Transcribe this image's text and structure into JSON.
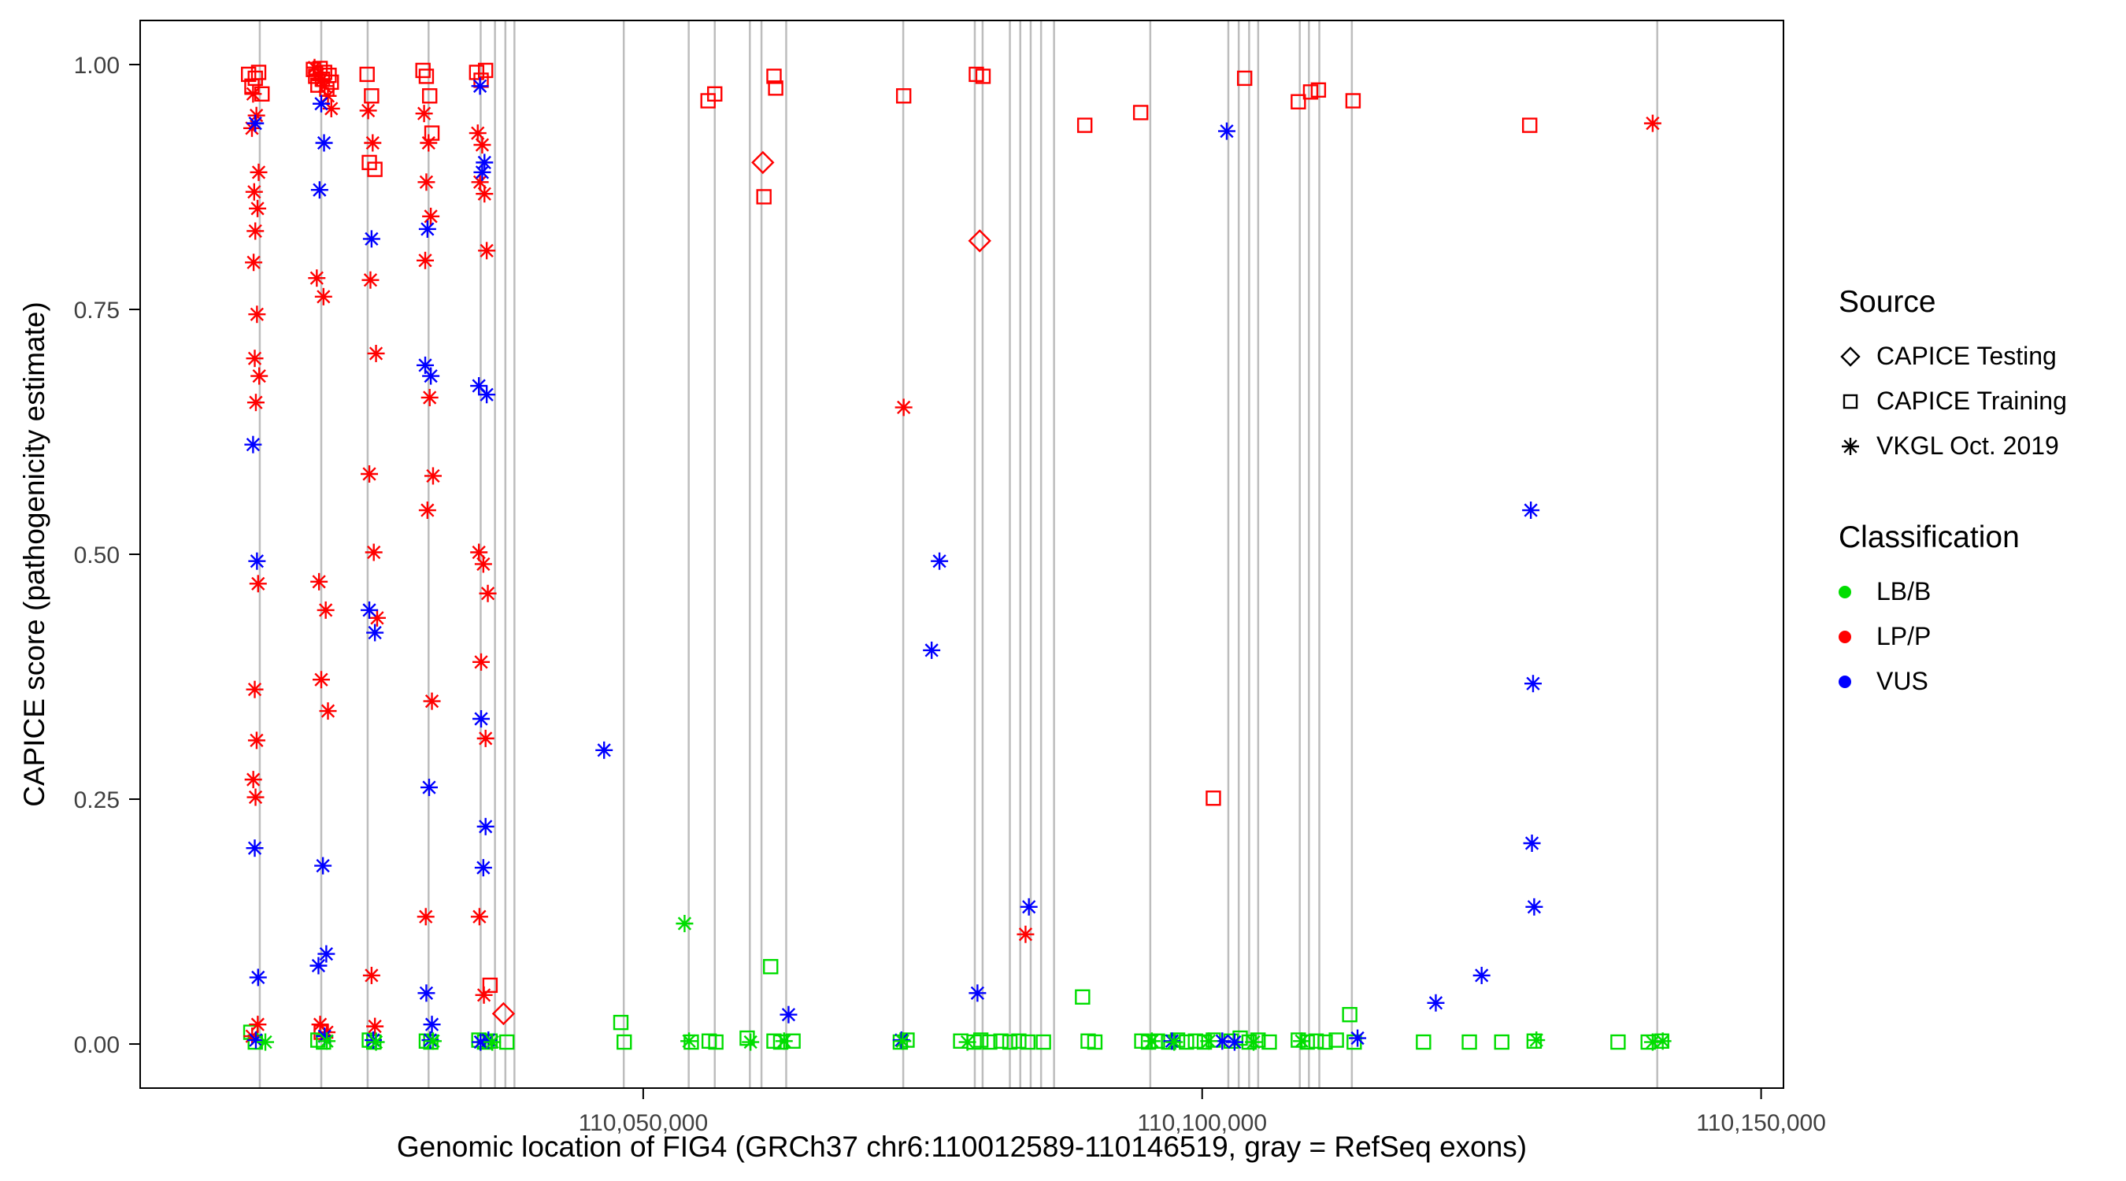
{
  "chart_data": {
    "type": "scatter",
    "title": "",
    "xlabel": "Genomic location of FIG4 (GRCh37 chr6:110012589-110146519, gray = RefSeq exons)",
    "ylabel": "CAPICE score (pathogenicity estimate)",
    "xlim": [
      110005000,
      110152000
    ],
    "ylim": [
      -0.045,
      1.045
    ],
    "grid": "off",
    "x_ticks": [
      {
        "value": 110050000,
        "label": "110,050,000"
      },
      {
        "value": 110100000,
        "label": "110,100,000"
      },
      {
        "value": 110150000,
        "label": "110,150,000"
      }
    ],
    "y_ticks": [
      {
        "value": 0.0,
        "label": "0.00"
      },
      {
        "value": 0.25,
        "label": "0.25"
      },
      {
        "value": 0.5,
        "label": "0.50"
      },
      {
        "value": 0.75,
        "label": "0.75"
      },
      {
        "value": 1.0,
        "label": "1.00"
      }
    ],
    "colors": {
      "LB/B": "#00dd00",
      "LP/P": "#ff0000",
      "VUS": "#0000ff",
      "exon": "#bdbdbd"
    },
    "exon_lines": [
      110015700,
      110021200,
      110025350,
      110030800,
      110035460,
      110036740,
      110037670,
      110038480,
      110048260,
      110054070,
      110056400,
      110059540,
      110060580,
      110062790,
      110073260,
      110079660,
      110080360,
      110082800,
      110083730,
      110084660,
      110085590,
      110086750,
      110095360,
      110102340,
      110103270,
      110104200,
      110105010,
      110108730,
      110109550,
      110110480,
      110113390,
      110140710
    ],
    "legend": {
      "source": {
        "title": "Source",
        "items": [
          {
            "label": "CAPICE Testing",
            "marker": "diamond"
          },
          {
            "label": "CAPICE Training",
            "marker": "square"
          },
          {
            "label": "VKGL Oct. 2019",
            "marker": "asterisk"
          }
        ]
      },
      "classification": {
        "title": "Classification",
        "items": [
          {
            "label": "LB/B",
            "color_key": "LB/B"
          },
          {
            "label": "LP/P",
            "color_key": "LP/P"
          },
          {
            "label": "VUS",
            "color_key": "VUS"
          }
        ]
      }
    },
    "series": [
      {
        "name": "CAPICE Testing",
        "classification": "LP/P",
        "marker": "diamond",
        "points": [
          [
            110037500,
            0.031
          ],
          [
            110060700,
            0.9
          ],
          [
            110080100,
            0.82
          ]
        ]
      },
      {
        "name": "CAPICE Training",
        "classification": "LP/P",
        "marker": "square",
        "points": [
          [
            110014700,
            0.99
          ],
          [
            110015000,
            0.978
          ],
          [
            110015300,
            0.986
          ],
          [
            110015600,
            0.992
          ],
          [
            110015900,
            0.97
          ],
          [
            110020500,
            0.995
          ],
          [
            110020700,
            0.988
          ],
          [
            110020900,
            0.979
          ],
          [
            110021100,
            0.996
          ],
          [
            110021300,
            0.985
          ],
          [
            110021500,
            0.992
          ],
          [
            110021700,
            0.975
          ],
          [
            110021900,
            0.989
          ],
          [
            110022100,
            0.982
          ],
          [
            110021200,
            0.012
          ],
          [
            110025300,
            0.99
          ],
          [
            110025700,
            0.968
          ],
          [
            110025500,
            0.9
          ],
          [
            110026000,
            0.893
          ],
          [
            110030300,
            0.994
          ],
          [
            110030600,
            0.988
          ],
          [
            110030900,
            0.968
          ],
          [
            110031100,
            0.93
          ],
          [
            110035100,
            0.992
          ],
          [
            110035500,
            0.984
          ],
          [
            110035900,
            0.994
          ],
          [
            110036300,
            0.06
          ],
          [
            110055800,
            0.963
          ],
          [
            110056400,
            0.97
          ],
          [
            110060800,
            0.865
          ],
          [
            110061700,
            0.988
          ],
          [
            110061850,
            0.976
          ],
          [
            110073300,
            0.968
          ],
          [
            110079800,
            0.99
          ],
          [
            110080400,
            0.988
          ],
          [
            110089500,
            0.938
          ],
          [
            110094500,
            0.951
          ],
          [
            110101000,
            0.251
          ],
          [
            110103800,
            0.986
          ],
          [
            110108600,
            0.962
          ],
          [
            110109700,
            0.972
          ],
          [
            110110400,
            0.974
          ],
          [
            110113500,
            0.963
          ],
          [
            110129300,
            0.938
          ]
        ]
      },
      {
        "name": "CAPICE Training",
        "classification": "LB/B",
        "marker": "square",
        "points": [
          [
            110014900,
            0.012
          ],
          [
            110015300,
            0.002
          ],
          [
            110020900,
            0.004
          ],
          [
            110021400,
            0.002
          ],
          [
            110025500,
            0.004
          ],
          [
            110025900,
            0.002
          ],
          [
            110030600,
            0.003
          ],
          [
            110031000,
            0.002
          ],
          [
            110035300,
            0.004
          ],
          [
            110035800,
            0.002
          ],
          [
            110036300,
            0.003
          ],
          [
            110037800,
            0.002
          ],
          [
            110048000,
            0.022
          ],
          [
            110048300,
            0.002
          ],
          [
            110054300,
            0.002
          ],
          [
            110055900,
            0.003
          ],
          [
            110056500,
            0.002
          ],
          [
            110059300,
            0.006
          ],
          [
            110061400,
            0.079
          ],
          [
            110061700,
            0.003
          ],
          [
            110062300,
            0.002
          ],
          [
            110063400,
            0.003
          ],
          [
            110073000,
            0.002
          ],
          [
            110073600,
            0.004
          ],
          [
            110078400,
            0.003
          ],
          [
            110079600,
            0.002
          ],
          [
            110080200,
            0.004
          ],
          [
            110081000,
            0.002
          ],
          [
            110082000,
            0.003
          ],
          [
            110082800,
            0.002
          ],
          [
            110083600,
            0.003
          ],
          [
            110084400,
            0.002
          ],
          [
            110085800,
            0.002
          ],
          [
            110089300,
            0.048
          ],
          [
            110089800,
            0.003
          ],
          [
            110090400,
            0.002
          ],
          [
            110094600,
            0.003
          ],
          [
            110095200,
            0.002
          ],
          [
            110096000,
            0.003
          ],
          [
            110097000,
            0.002
          ],
          [
            110097800,
            0.004
          ],
          [
            110098600,
            0.002
          ],
          [
            110099400,
            0.003
          ],
          [
            110100200,
            0.002
          ],
          [
            110101000,
            0.004
          ],
          [
            110102600,
            0.003
          ],
          [
            110103400,
            0.006
          ],
          [
            110104200,
            0.002
          ],
          [
            110105000,
            0.004
          ],
          [
            110106000,
            0.002
          ],
          [
            110108600,
            0.004
          ],
          [
            110109400,
            0.002
          ],
          [
            110110200,
            0.003
          ],
          [
            110111000,
            0.002
          ],
          [
            110112000,
            0.004
          ],
          [
            110113200,
            0.03
          ],
          [
            110113600,
            0.002
          ],
          [
            110119800,
            0.002
          ],
          [
            110123900,
            0.002
          ],
          [
            110126800,
            0.002
          ],
          [
            110129700,
            0.003
          ],
          [
            110137200,
            0.002
          ],
          [
            110139900,
            0.002
          ],
          [
            110141100,
            0.003
          ]
        ]
      },
      {
        "name": "VKGL Oct. 2019",
        "classification": "LP/P",
        "marker": "asterisk",
        "points": [
          [
            110015100,
            0.97
          ],
          [
            110015400,
            0.948
          ],
          [
            110015000,
            0.935
          ],
          [
            110015600,
            0.89
          ],
          [
            110015200,
            0.87
          ],
          [
            110015500,
            0.853
          ],
          [
            110015300,
            0.83
          ],
          [
            110015150,
            0.798
          ],
          [
            110015450,
            0.745
          ],
          [
            110015250,
            0.7
          ],
          [
            110015650,
            0.682
          ],
          [
            110015350,
            0.655
          ],
          [
            110015550,
            0.47
          ],
          [
            110015250,
            0.362
          ],
          [
            110015420,
            0.31
          ],
          [
            110015120,
            0.27
          ],
          [
            110015320,
            0.252
          ],
          [
            110015520,
            0.02
          ],
          [
            110015020,
            0.008
          ],
          [
            110020600,
            0.997
          ],
          [
            110020900,
            0.99
          ],
          [
            110021200,
            0.984
          ],
          [
            110021500,
            0.978
          ],
          [
            110021800,
            0.968
          ],
          [
            110022100,
            0.955
          ],
          [
            110020800,
            0.782
          ],
          [
            110021400,
            0.763
          ],
          [
            110021000,
            0.472
          ],
          [
            110021600,
            0.443
          ],
          [
            110021200,
            0.372
          ],
          [
            110021800,
            0.34
          ],
          [
            110021100,
            0.02
          ],
          [
            110021700,
            0.012
          ],
          [
            110025400,
            0.953
          ],
          [
            110025800,
            0.92
          ],
          [
            110025600,
            0.78
          ],
          [
            110026100,
            0.705
          ],
          [
            110025500,
            0.582
          ],
          [
            110025900,
            0.502
          ],
          [
            110026200,
            0.435
          ],
          [
            110025700,
            0.07
          ],
          [
            110026000,
            0.018
          ],
          [
            110030400,
            0.95
          ],
          [
            110030800,
            0.92
          ],
          [
            110030600,
            0.88
          ],
          [
            110031000,
            0.845
          ],
          [
            110030500,
            0.8
          ],
          [
            110030900,
            0.66
          ],
          [
            110031200,
            0.58
          ],
          [
            110030700,
            0.545
          ],
          [
            110031100,
            0.35
          ],
          [
            110030550,
            0.13
          ],
          [
            110035200,
            0.93
          ],
          [
            110035600,
            0.918
          ],
          [
            110035400,
            0.88
          ],
          [
            110035800,
            0.868
          ],
          [
            110036000,
            0.81
          ],
          [
            110035300,
            0.502
          ],
          [
            110035700,
            0.49
          ],
          [
            110036100,
            0.46
          ],
          [
            110035500,
            0.39
          ],
          [
            110035900,
            0.312
          ],
          [
            110035350,
            0.13
          ],
          [
            110035750,
            0.05
          ],
          [
            110073300,
            0.65
          ],
          [
            110084200,
            0.112
          ],
          [
            110140300,
            0.94
          ]
        ]
      },
      {
        "name": "VKGL Oct. 2019",
        "classification": "VUS",
        "marker": "asterisk",
        "points": [
          [
            110015300,
            0.94
          ],
          [
            110015100,
            0.612
          ],
          [
            110015450,
            0.493
          ],
          [
            110015250,
            0.2
          ],
          [
            110015550,
            0.068
          ],
          [
            110015350,
            0.004
          ],
          [
            110021200,
            0.96
          ],
          [
            110021450,
            0.92
          ],
          [
            110021050,
            0.872
          ],
          [
            110021350,
            0.182
          ],
          [
            110021650,
            0.092
          ],
          [
            110020950,
            0.08
          ],
          [
            110021500,
            0.008
          ],
          [
            110025700,
            0.822
          ],
          [
            110025500,
            0.443
          ],
          [
            110026000,
            0.42
          ],
          [
            110025850,
            0.004
          ],
          [
            110030700,
            0.832
          ],
          [
            110030500,
            0.693
          ],
          [
            110031000,
            0.682
          ],
          [
            110030850,
            0.262
          ],
          [
            110030600,
            0.052
          ],
          [
            110031100,
            0.02
          ],
          [
            110030950,
            0.004
          ],
          [
            110035400,
            0.978
          ],
          [
            110035800,
            0.9
          ],
          [
            110035600,
            0.89
          ],
          [
            110035300,
            0.672
          ],
          [
            110036000,
            0.663
          ],
          [
            110035500,
            0.332
          ],
          [
            110035900,
            0.222
          ],
          [
            110035700,
            0.18
          ],
          [
            110036150,
            0.004
          ],
          [
            110035450,
            0.002
          ],
          [
            110046500,
            0.3
          ],
          [
            110063000,
            0.03
          ],
          [
            110075800,
            0.402
          ],
          [
            110076500,
            0.493
          ],
          [
            110079900,
            0.052
          ],
          [
            110084500,
            0.14
          ],
          [
            110102200,
            0.932
          ],
          [
            110113900,
            0.006
          ],
          [
            110120900,
            0.042
          ],
          [
            110125000,
            0.07
          ],
          [
            110129400,
            0.545
          ],
          [
            110129600,
            0.368
          ],
          [
            110129500,
            0.205
          ],
          [
            110129700,
            0.14
          ],
          [
            110073100,
            0.004
          ],
          [
            110101800,
            0.003
          ],
          [
            110097300,
            0.003
          ],
          [
            110102900,
            0.002
          ]
        ]
      },
      {
        "name": "VKGL Oct. 2019",
        "classification": "LB/B",
        "marker": "asterisk",
        "points": [
          [
            110053700,
            0.123
          ],
          [
            110016200,
            0.002
          ],
          [
            110021700,
            0.003
          ],
          [
            110026100,
            0.002
          ],
          [
            110031200,
            0.003
          ],
          [
            110036500,
            0.002
          ],
          [
            110054100,
            0.003
          ],
          [
            110059600,
            0.002
          ],
          [
            110062600,
            0.003
          ],
          [
            110073200,
            0.003
          ],
          [
            110079000,
            0.002
          ],
          [
            110095500,
            0.003
          ],
          [
            110097500,
            0.002
          ],
          [
            110100600,
            0.003
          ],
          [
            110104600,
            0.002
          ],
          [
            110108900,
            0.003
          ],
          [
            110129900,
            0.004
          ],
          [
            110140300,
            0.002
          ],
          [
            110141200,
            0.003
          ]
        ]
      }
    ]
  }
}
